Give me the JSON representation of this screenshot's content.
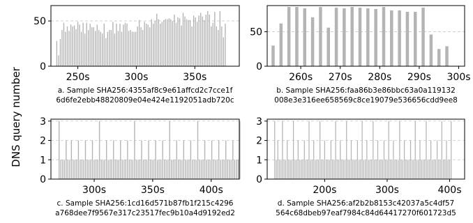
{
  "ylabel": "DNS query number",
  "chart_data": [
    {
      "type": "bar",
      "caption_line1": "a. Sample SHA256:4355af8c9e61affcd2c7cce1f",
      "caption_line2": "6d6fe2ebb48820809e04e424e1192051adb720c",
      "x_tick_labels": [
        "250s",
        "300s",
        "350s"
      ],
      "x_ticks": [
        250,
        300,
        350
      ],
      "y_ticks": [
        0,
        50
      ],
      "xlim": [
        227,
        388
      ],
      "ylim": [
        0,
        67
      ],
      "grid": "dashed-horizontal",
      "x_start": 232,
      "x_step": 1.5,
      "values": [
        28,
        12,
        30,
        40,
        48,
        38,
        44,
        39,
        46,
        44,
        45,
        41,
        49,
        46,
        38,
        48,
        36,
        48,
        40,
        47,
        43,
        43,
        39,
        46,
        40,
        38,
        36,
        47,
        31,
        38,
        40,
        40,
        49,
        36,
        47,
        39,
        47,
        38,
        46,
        48,
        47,
        39,
        40,
        38,
        38,
        38,
        44,
        51,
        43,
        40,
        49,
        47,
        46,
        43,
        52,
        47,
        50,
        58,
        52,
        47,
        49,
        51,
        52,
        52,
        53,
        52,
        50,
        57,
        48,
        54,
        53,
        45,
        59,
        55,
        52,
        51,
        51,
        44,
        56,
        54,
        49,
        56,
        59,
        55,
        51,
        57,
        61,
        57,
        44,
        48,
        60,
        44,
        40,
        61,
        44,
        32,
        47
      ]
    },
    {
      "type": "bar",
      "caption_line1": "b. Sample SHA256:faa86b3e86bbc63a0a119132",
      "caption_line2": "008e3e316ee658569c8ce19079e536656cdd9ee8",
      "x_tick_labels": [
        "260s",
        "270s",
        "280s",
        "290s",
        "300s"
      ],
      "x_ticks": [
        260,
        270,
        280,
        290,
        300
      ],
      "y_ticks": [
        0,
        50
      ],
      "xlim": [
        251.5,
        301.5
      ],
      "ylim": [
        0,
        88
      ],
      "grid": "dashed-horizontal",
      "x": [
        253,
        255,
        257,
        259,
        261,
        263,
        265,
        267,
        269,
        271,
        273,
        275,
        277,
        279,
        281,
        283,
        285,
        287,
        289,
        291,
        293,
        295,
        297
      ],
      "values": [
        30,
        62,
        86,
        86,
        84,
        71,
        86,
        56,
        85,
        84,
        86,
        85,
        84,
        83,
        86,
        81,
        81,
        79,
        79,
        85,
        46,
        25,
        29
      ]
    },
    {
      "type": "bar",
      "caption_line1": "c. Sample SHA256:1cd16d571b87fb1f215c4296",
      "caption_line2": "a768dee7f9567e317c23517fec9b10a4d9192ed2",
      "x_tick_labels": [
        "300s",
        "350s",
        "400s"
      ],
      "x_ticks": [
        300,
        350,
        400
      ],
      "y_ticks": [
        0,
        1,
        2,
        3
      ],
      "xlim": [
        263,
        424
      ],
      "ylim": [
        0,
        3.1
      ],
      "grid": "dashed-horizontal",
      "x_start": 270,
      "x_step": 1.5,
      "values": [
        3,
        1,
        1,
        1,
        2,
        1,
        1,
        2,
        1,
        1,
        1,
        2,
        1,
        1,
        1,
        2,
        1,
        1,
        1,
        2,
        1,
        1,
        1,
        3,
        1,
        1,
        1,
        2,
        1,
        1,
        1,
        2,
        1,
        1,
        1,
        2,
        1,
        1,
        1,
        2,
        1,
        1,
        1,
        3,
        1,
        1,
        1,
        2,
        1,
        1,
        1,
        2,
        1,
        1,
        1,
        2,
        1,
        1,
        1,
        2,
        1,
        1,
        1,
        3,
        1,
        1,
        1,
        2,
        1,
        1,
        1,
        2,
        1,
        1,
        1,
        2,
        1,
        1,
        1,
        3,
        1,
        1,
        1,
        2,
        1,
        1,
        1,
        2,
        1,
        1,
        1,
        2,
        1,
        1,
        1,
        2,
        1,
        1,
        1,
        2,
        1,
        1,
        1,
        3
      ]
    },
    {
      "type": "bar",
      "caption_line1": "d. Sample SHA256:af2b2b8153c42037a5c4df57",
      "caption_line2": "564c68dbeb97eaf7984c84d64417270f601723d5",
      "x_tick_labels": [
        "200s",
        "300s",
        "400s"
      ],
      "x_ticks": [
        200,
        300,
        400
      ],
      "y_ticks": [
        0,
        1,
        2,
        3
      ],
      "xlim": [
        108,
        424
      ],
      "ylim": [
        0,
        3.1
      ],
      "grid": "dashed-horizontal",
      "x_start": 120,
      "x_step": 2.5,
      "values": [
        3,
        1,
        2,
        1,
        1,
        3,
        1,
        1,
        2,
        1,
        1,
        1,
        3,
        1,
        1,
        2,
        1,
        1,
        1,
        2,
        1,
        1,
        3,
        1,
        1,
        2,
        1,
        1,
        1,
        3,
        1,
        1,
        2,
        1,
        1,
        1,
        2,
        1,
        1,
        3,
        1,
        1,
        2,
        1,
        1,
        1,
        3,
        1,
        1,
        2,
        1,
        1,
        1,
        2,
        1,
        1,
        3,
        1,
        1,
        2,
        1,
        1,
        1,
        3,
        1,
        1,
        2,
        1,
        1,
        1,
        2,
        1,
        1,
        3,
        1,
        1,
        2,
        1,
        1,
        1,
        3,
        1,
        1,
        2,
        1,
        1,
        1,
        2,
        1,
        1,
        3,
        1,
        1,
        2,
        1,
        1,
        1,
        3,
        1,
        1,
        2,
        1,
        1,
        1,
        2,
        1,
        1,
        3,
        1,
        1,
        2,
        1,
        1,
        3
      ]
    }
  ]
}
